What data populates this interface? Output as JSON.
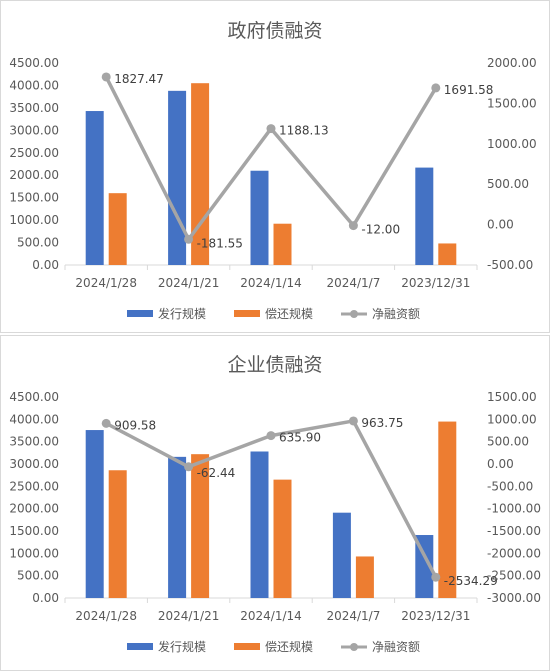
{
  "chart_data": [
    {
      "type": "bar",
      "title": "政府债融资",
      "categories": [
        "2024/1/28",
        "2024/1/21",
        "2024/1/14",
        "2024/1/7",
        "2023/12/31"
      ],
      "series": [
        {
          "name": "发行规模",
          "kind": "bar",
          "axis": "left",
          "color": "#4472C4",
          "values": [
            3430,
            3880,
            2100,
            0,
            2170
          ]
        },
        {
          "name": "偿还规模",
          "kind": "bar",
          "axis": "left",
          "color": "#ED7D31",
          "values": [
            1600,
            4050,
            920,
            0,
            480
          ]
        },
        {
          "name": "净融资额",
          "kind": "line",
          "axis": "right",
          "color": "#A5A5A5",
          "values": [
            1827.47,
            -181.55,
            1188.13,
            -12.0,
            1691.58
          ],
          "labels": [
            "1827.47",
            "-181.55",
            "1188.13",
            "-12.00",
            "1691.58"
          ]
        }
      ],
      "left_axis": {
        "min": 0,
        "max": 4500,
        "step": 500,
        "ticks": [
          "0.00",
          "500.00",
          "1000.00",
          "1500.00",
          "2000.00",
          "2500.00",
          "3000.00",
          "3500.00",
          "4000.00",
          "4500.00"
        ]
      },
      "right_axis": {
        "min": -500,
        "max": 2000,
        "step": 500,
        "ticks": [
          "-500.00",
          "0.00",
          "500.00",
          "1000.00",
          "1500.00",
          "2000.00"
        ]
      },
      "legend_position": "bottom",
      "grid": false
    },
    {
      "type": "bar",
      "title": "企业债融资",
      "categories": [
        "2024/1/28",
        "2024/1/21",
        "2024/1/14",
        "2024/1/7",
        "2023/12/31"
      ],
      "series": [
        {
          "name": "发行规模",
          "kind": "bar",
          "axis": "left",
          "color": "#4472C4",
          "values": [
            3760,
            3160,
            3280,
            1910,
            1410
          ]
        },
        {
          "name": "偿还规模",
          "kind": "bar",
          "axis": "left",
          "color": "#ED7D31",
          "values": [
            2860,
            3220,
            2650,
            930,
            3950
          ]
        },
        {
          "name": "净融资额",
          "kind": "line",
          "axis": "right",
          "color": "#A5A5A5",
          "values": [
            909.58,
            -62.44,
            635.9,
            963.75,
            -2534.29
          ],
          "labels": [
            "909.58",
            "-62.44",
            "635.90",
            "963.75",
            "-2534.29"
          ]
        }
      ],
      "left_axis": {
        "min": 0,
        "max": 4500,
        "step": 500,
        "ticks": [
          "0.00",
          "500.00",
          "1000.00",
          "1500.00",
          "2000.00",
          "2500.00",
          "3000.00",
          "3500.00",
          "4000.00",
          "4500.00"
        ]
      },
      "right_axis": {
        "min": -3000,
        "max": 1500,
        "step": 500,
        "ticks": [
          "-3000.00",
          "-2500.00",
          "-2000.00",
          "-1500.00",
          "-1000.00",
          "-500.00",
          "0.00",
          "500.00",
          "1000.00",
          "1500.00"
        ]
      },
      "legend_position": "bottom",
      "grid": false
    }
  ]
}
